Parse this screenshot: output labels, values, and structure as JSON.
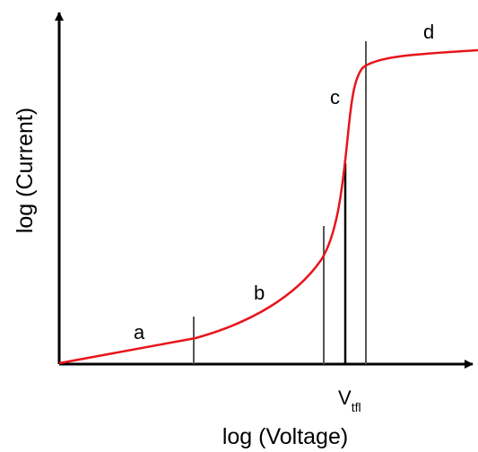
{
  "axes": {
    "x_label": "log (Voltage)",
    "y_label": "log (Current)"
  },
  "region_labels": {
    "a": "a",
    "b": "b",
    "c": "c",
    "d": "d"
  },
  "threshold_label": {
    "main": "V",
    "subscript": "tfl"
  },
  "colors": {
    "curve": "#e8141b",
    "axis": "#000000",
    "divider": "#555555"
  }
}
